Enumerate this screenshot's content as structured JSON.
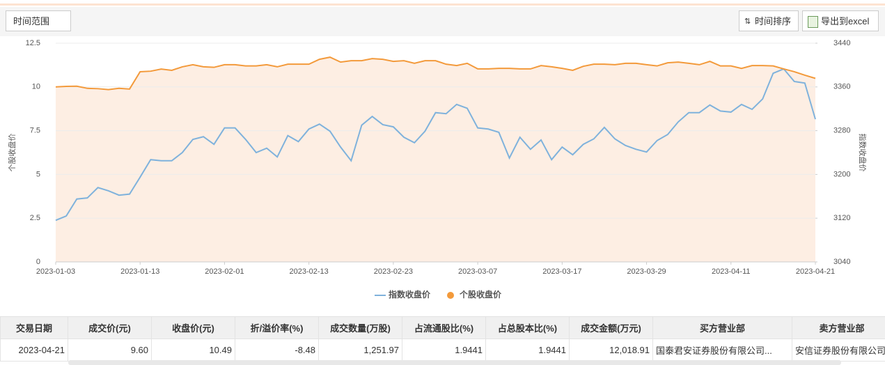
{
  "toolbar": {
    "range_button": "时间范围",
    "sort_button": "时间排序",
    "export_button": "导出到excel"
  },
  "chart_data": {
    "type": "line",
    "y_label": "个股收盘价",
    "y2_label": "指数收盘价",
    "x": [
      "2023-01-03",
      "2023-01-04",
      "2023-01-05",
      "2023-01-06",
      "2023-01-09",
      "2023-01-10",
      "2023-01-11",
      "2023-01-12",
      "2023-01-13",
      "2023-01-16",
      "2023-01-17",
      "2023-01-18",
      "2023-01-19",
      "2023-01-20",
      "2023-01-30",
      "2023-01-31",
      "2023-02-01",
      "2023-02-02",
      "2023-02-03",
      "2023-02-06",
      "2023-02-07",
      "2023-02-08",
      "2023-02-09",
      "2023-02-10",
      "2023-02-13",
      "2023-02-14",
      "2023-02-15",
      "2023-02-16",
      "2023-02-17",
      "2023-02-20",
      "2023-02-21",
      "2023-02-22",
      "2023-02-23",
      "2023-02-24",
      "2023-02-27",
      "2023-02-28",
      "2023-03-01",
      "2023-03-02",
      "2023-03-03",
      "2023-03-06",
      "2023-03-07",
      "2023-03-08",
      "2023-03-09",
      "2023-03-10",
      "2023-03-13",
      "2023-03-14",
      "2023-03-15",
      "2023-03-16",
      "2023-03-17",
      "2023-03-20",
      "2023-03-21",
      "2023-03-22",
      "2023-03-23",
      "2023-03-24",
      "2023-03-27",
      "2023-03-28",
      "2023-03-29",
      "2023-03-30",
      "2023-03-31",
      "2023-04-03",
      "2023-04-04",
      "2023-04-06",
      "2023-04-07",
      "2023-04-10",
      "2023-04-11",
      "2023-04-12",
      "2023-04-13",
      "2023-04-14",
      "2023-04-17",
      "2023-04-18",
      "2023-04-19",
      "2023-04-20",
      "2023-04-21"
    ],
    "xticks": [
      "2023-01-03",
      "2023-01-13",
      "2023-02-01",
      "2023-02-13",
      "2023-02-23",
      "2023-03-07",
      "2023-03-17",
      "2023-03-29",
      "2023-04-11",
      "2023-04-21"
    ],
    "ylim": [
      0,
      12.5
    ],
    "yticks": [
      0,
      2.5,
      5,
      7.5,
      10,
      12.5
    ],
    "y2lim": [
      3040,
      3440
    ],
    "y2ticks": [
      3040,
      3120,
      3200,
      3280,
      3360,
      3440
    ],
    "grid": true,
    "series": [
      {
        "name": "指数收盘价",
        "color": "#7fb2dc",
        "style": "line",
        "axis": "y2",
        "values": [
          3116,
          3124,
          3155,
          3157,
          3176,
          3170,
          3162,
          3164,
          3195,
          3227,
          3225,
          3225,
          3240,
          3264,
          3269,
          3255,
          3285,
          3285,
          3264,
          3240,
          3248,
          3232,
          3271,
          3260,
          3283,
          3292,
          3279,
          3250,
          3225,
          3290,
          3306,
          3291,
          3287,
          3268,
          3258,
          3279,
          3313,
          3311,
          3328,
          3321,
          3285,
          3283,
          3277,
          3230,
          3268,
          3246,
          3263,
          3227,
          3250,
          3236,
          3255,
          3265,
          3286,
          3265,
          3253,
          3246,
          3241,
          3262,
          3273,
          3296,
          3313,
          3313,
          3327,
          3316,
          3314,
          3328,
          3319,
          3338,
          3385,
          3393,
          3370,
          3367,
          3301
        ]
      },
      {
        "name": "个股收盘价",
        "color": "#f39a3b",
        "style": "area",
        "values": [
          10.0,
          10.03,
          10.04,
          9.92,
          9.9,
          9.85,
          9.92,
          9.88,
          10.87,
          10.9,
          11.02,
          10.95,
          11.15,
          11.27,
          11.15,
          11.12,
          11.27,
          11.27,
          11.2,
          11.2,
          11.27,
          11.15,
          11.3,
          11.3,
          11.3,
          11.58,
          11.7,
          11.42,
          11.5,
          11.5,
          11.62,
          11.58,
          11.46,
          11.5,
          11.35,
          11.5,
          11.5,
          11.3,
          11.22,
          11.35,
          11.03,
          11.03,
          11.06,
          11.06,
          11.03,
          11.03,
          11.22,
          11.15,
          11.06,
          10.95,
          11.18,
          11.3,
          11.3,
          11.27,
          11.35,
          11.35,
          11.27,
          11.2,
          11.38,
          11.42,
          11.35,
          11.27,
          11.46,
          11.2,
          11.2,
          11.06,
          11.22,
          11.22,
          11.2,
          11.03,
          10.87,
          10.67,
          10.49
        ]
      }
    ]
  },
  "table": {
    "headers": [
      "交易日期",
      "成交价(元)",
      "收盘价(元)",
      "折/溢价率(%)",
      "成交数量(万股)",
      "占流通股比(%)",
      "占总股本比(%)",
      "成交金额(万元)",
      "买方营业部",
      "卖方营业部"
    ],
    "rows": [
      [
        "2023-04-21",
        "9.60",
        "10.49",
        "-8.48",
        "1,251.97",
        "1.9441",
        "1.9441",
        "12,018.91",
        "国泰君安证券股份有限公司...",
        "安信证券股份有限公司"
      ]
    ]
  }
}
